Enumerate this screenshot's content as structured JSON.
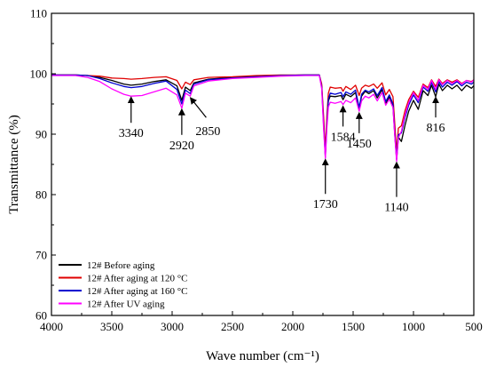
{
  "chart_data": {
    "type": "line",
    "xlabel": "Wave number (cm⁻¹)",
    "ylabel": "Transmittance (%)",
    "xlim": [
      4000,
      500
    ],
    "ylim": [
      60,
      110
    ],
    "x_ticks": [
      4000,
      3500,
      3000,
      2500,
      2000,
      1500,
      1000,
      500
    ],
    "y_ticks": [
      60,
      70,
      80,
      90,
      100,
      110
    ],
    "grid": false,
    "legend": "bottom-left",
    "series": [
      {
        "name": "12#  Before aging",
        "color": "#000000",
        "points": [
          [
            4000,
            99.8
          ],
          [
            3800,
            99.8
          ],
          [
            3700,
            99.7
          ],
          [
            3600,
            99.4
          ],
          [
            3500,
            98.9
          ],
          [
            3400,
            98.3
          ],
          [
            3340,
            98.1
          ],
          [
            3250,
            98.3
          ],
          [
            3150,
            98.7
          ],
          [
            3050,
            99.0
          ],
          [
            2960,
            98.0
          ],
          [
            2920,
            95.6
          ],
          [
            2890,
            97.8
          ],
          [
            2850,
            97.2
          ],
          [
            2820,
            98.5
          ],
          [
            2700,
            99.1
          ],
          [
            2500,
            99.4
          ],
          [
            2300,
            99.6
          ],
          [
            2100,
            99.7
          ],
          [
            1900,
            99.8
          ],
          [
            1780,
            99.8
          ],
          [
            1760,
            98.0
          ],
          [
            1745,
            92.0
          ],
          [
            1730,
            86.5
          ],
          [
            1718,
            92.0
          ],
          [
            1705,
            95.5
          ],
          [
            1690,
            96.3
          ],
          [
            1650,
            96.2
          ],
          [
            1600,
            96.4
          ],
          [
            1584,
            95.7
          ],
          [
            1560,
            96.6
          ],
          [
            1520,
            96.2
          ],
          [
            1480,
            96.9
          ],
          [
            1450,
            94.1
          ],
          [
            1430,
            96.3
          ],
          [
            1400,
            97.1
          ],
          [
            1370,
            96.7
          ],
          [
            1330,
            97.2
          ],
          [
            1300,
            96.0
          ],
          [
            1260,
            97.4
          ],
          [
            1230,
            95.0
          ],
          [
            1200,
            96.2
          ],
          [
            1170,
            94.6
          ],
          [
            1155,
            90.0
          ],
          [
            1140,
            85.8
          ],
          [
            1125,
            89.5
          ],
          [
            1100,
            88.8
          ],
          [
            1070,
            91.5
          ],
          [
            1040,
            93.8
          ],
          [
            1000,
            95.6
          ],
          [
            960,
            94.1
          ],
          [
            920,
            97.2
          ],
          [
            880,
            96.4
          ],
          [
            850,
            98.1
          ],
          [
            816,
            96.2
          ],
          [
            790,
            98.3
          ],
          [
            760,
            97.2
          ],
          [
            720,
            98.1
          ],
          [
            680,
            97.5
          ],
          [
            640,
            98.1
          ],
          [
            600,
            97.2
          ],
          [
            560,
            98.1
          ],
          [
            520,
            97.6
          ],
          [
            500,
            98.0
          ]
        ]
      },
      {
        "name": "12#  After aging at 120 °C",
        "color": "#e00000",
        "points": [
          [
            4000,
            99.8
          ],
          [
            3800,
            99.8
          ],
          [
            3700,
            99.7
          ],
          [
            3600,
            99.6
          ],
          [
            3500,
            99.3
          ],
          [
            3400,
            99.2
          ],
          [
            3340,
            99.1
          ],
          [
            3250,
            99.2
          ],
          [
            3150,
            99.4
          ],
          [
            3050,
            99.5
          ],
          [
            2960,
            98.9
          ],
          [
            2920,
            97.5
          ],
          [
            2890,
            98.6
          ],
          [
            2850,
            98.2
          ],
          [
            2820,
            99.0
          ],
          [
            2700,
            99.4
          ],
          [
            2500,
            99.5
          ],
          [
            2300,
            99.7
          ],
          [
            2100,
            99.8
          ],
          [
            1900,
            99.8
          ],
          [
            1780,
            99.8
          ],
          [
            1760,
            98.3
          ],
          [
            1745,
            93.0
          ],
          [
            1730,
            87.5
          ],
          [
            1718,
            93.0
          ],
          [
            1705,
            96.8
          ],
          [
            1690,
            97.8
          ],
          [
            1650,
            97.6
          ],
          [
            1600,
            97.7
          ],
          [
            1584,
            97.1
          ],
          [
            1560,
            97.9
          ],
          [
            1520,
            97.4
          ],
          [
            1480,
            98.1
          ],
          [
            1450,
            96.4
          ],
          [
            1430,
            97.6
          ],
          [
            1400,
            98.1
          ],
          [
            1370,
            97.9
          ],
          [
            1330,
            98.3
          ],
          [
            1300,
            97.6
          ],
          [
            1260,
            98.5
          ],
          [
            1230,
            96.5
          ],
          [
            1200,
            97.4
          ],
          [
            1170,
            96.2
          ],
          [
            1155,
            91.8
          ],
          [
            1140,
            87.0
          ],
          [
            1125,
            91.0
          ],
          [
            1100,
            91.4
          ],
          [
            1070,
            93.9
          ],
          [
            1040,
            95.7
          ],
          [
            1000,
            97.1
          ],
          [
            960,
            96.1
          ],
          [
            920,
            98.3
          ],
          [
            880,
            97.7
          ],
          [
            850,
            99.0
          ],
          [
            816,
            97.9
          ],
          [
            790,
            99.1
          ],
          [
            760,
            98.4
          ],
          [
            720,
            99.0
          ],
          [
            680,
            98.6
          ],
          [
            640,
            99.0
          ],
          [
            600,
            98.4
          ],
          [
            560,
            98.9
          ],
          [
            520,
            98.7
          ],
          [
            500,
            99.0
          ]
        ]
      },
      {
        "name": "12#  After aging at 160 °C",
        "color": "#0000d0",
        "points": [
          [
            4000,
            99.8
          ],
          [
            3800,
            99.8
          ],
          [
            3700,
            99.7
          ],
          [
            3600,
            99.2
          ],
          [
            3500,
            98.5
          ],
          [
            3400,
            97.9
          ],
          [
            3340,
            97.7
          ],
          [
            3250,
            97.9
          ],
          [
            3150,
            98.4
          ],
          [
            3050,
            98.8
          ],
          [
            2960,
            97.4
          ],
          [
            2920,
            95.0
          ],
          [
            2890,
            97.3
          ],
          [
            2850,
            96.7
          ],
          [
            2820,
            98.3
          ],
          [
            2700,
            99.0
          ],
          [
            2500,
            99.3
          ],
          [
            2300,
            99.5
          ],
          [
            2100,
            99.7
          ],
          [
            1900,
            99.8
          ],
          [
            1780,
            99.8
          ],
          [
            1760,
            97.8
          ],
          [
            1745,
            91.5
          ],
          [
            1730,
            86.2
          ],
          [
            1718,
            91.5
          ],
          [
            1705,
            95.8
          ],
          [
            1690,
            96.8
          ],
          [
            1650,
            96.6
          ],
          [
            1600,
            96.9
          ],
          [
            1584,
            96.2
          ],
          [
            1560,
            97.0
          ],
          [
            1520,
            96.6
          ],
          [
            1480,
            97.3
          ],
          [
            1450,
            94.4
          ],
          [
            1430,
            96.6
          ],
          [
            1400,
            97.3
          ],
          [
            1370,
            97.0
          ],
          [
            1330,
            97.5
          ],
          [
            1300,
            96.4
          ],
          [
            1260,
            97.7
          ],
          [
            1230,
            95.4
          ],
          [
            1200,
            96.5
          ],
          [
            1170,
            95.0
          ],
          [
            1155,
            90.2
          ],
          [
            1140,
            85.9
          ],
          [
            1125,
            89.9
          ],
          [
            1100,
            90.2
          ],
          [
            1070,
            92.8
          ],
          [
            1040,
            94.8
          ],
          [
            1000,
            96.5
          ],
          [
            960,
            95.2
          ],
          [
            920,
            97.8
          ],
          [
            880,
            97.1
          ],
          [
            850,
            98.6
          ],
          [
            816,
            97.0
          ],
          [
            790,
            98.7
          ],
          [
            760,
            97.8
          ],
          [
            720,
            98.6
          ],
          [
            680,
            98.1
          ],
          [
            640,
            98.7
          ],
          [
            600,
            98.0
          ],
          [
            560,
            98.6
          ],
          [
            520,
            98.3
          ],
          [
            500,
            98.6
          ]
        ]
      },
      {
        "name": "12#  After UV aging",
        "color": "#ff00ff",
        "points": [
          [
            4000,
            99.7
          ],
          [
            3800,
            99.7
          ],
          [
            3700,
            99.4
          ],
          [
            3600,
            98.7
          ],
          [
            3500,
            97.5
          ],
          [
            3400,
            96.6
          ],
          [
            3340,
            96.3
          ],
          [
            3250,
            96.4
          ],
          [
            3150,
            97.0
          ],
          [
            3050,
            97.6
          ],
          [
            2960,
            96.5
          ],
          [
            2920,
            94.3
          ],
          [
            2890,
            96.8
          ],
          [
            2850,
            96.3
          ],
          [
            2820,
            98.0
          ],
          [
            2700,
            98.8
          ],
          [
            2500,
            99.2
          ],
          [
            2300,
            99.4
          ],
          [
            2100,
            99.6
          ],
          [
            1900,
            99.7
          ],
          [
            1780,
            99.7
          ],
          [
            1760,
            97.5
          ],
          [
            1745,
            91.0
          ],
          [
            1730,
            86.0
          ],
          [
            1718,
            91.0
          ],
          [
            1705,
            94.5
          ],
          [
            1690,
            95.3
          ],
          [
            1650,
            95.1
          ],
          [
            1600,
            95.4
          ],
          [
            1584,
            94.9
          ],
          [
            1560,
            95.6
          ],
          [
            1520,
            95.2
          ],
          [
            1480,
            96.0
          ],
          [
            1450,
            93.8
          ],
          [
            1430,
            95.5
          ],
          [
            1400,
            96.3
          ],
          [
            1370,
            96.0
          ],
          [
            1330,
            96.6
          ],
          [
            1300,
            95.5
          ],
          [
            1260,
            96.9
          ],
          [
            1230,
            94.8
          ],
          [
            1200,
            95.8
          ],
          [
            1170,
            94.4
          ],
          [
            1155,
            89.8
          ],
          [
            1140,
            85.5
          ],
          [
            1125,
            89.4
          ],
          [
            1100,
            90.5
          ],
          [
            1070,
            93.2
          ],
          [
            1040,
            95.2
          ],
          [
            1000,
            96.9
          ],
          [
            960,
            95.6
          ],
          [
            920,
            98.1
          ],
          [
            880,
            97.4
          ],
          [
            850,
            98.9
          ],
          [
            816,
            97.4
          ],
          [
            790,
            99.0
          ],
          [
            760,
            98.2
          ],
          [
            720,
            98.9
          ],
          [
            680,
            98.4
          ],
          [
            640,
            98.9
          ],
          [
            600,
            98.3
          ],
          [
            560,
            98.9
          ],
          [
            520,
            98.6
          ],
          [
            500,
            99.0
          ]
        ]
      }
    ],
    "annotations": [
      {
        "label": "3340",
        "x": 3340,
        "y": 96.0,
        "dir": "up"
      },
      {
        "label": "2920",
        "x": 2920,
        "y": 94.0,
        "dir": "up"
      },
      {
        "label": "2850",
        "x": 2850,
        "y": 96.0,
        "dir": "diag"
      },
      {
        "label": "1730",
        "x": 1730,
        "y": 85.7,
        "dir": "up-long"
      },
      {
        "label": "1584",
        "x": 1584,
        "y": 94.5,
        "dir": "up-short"
      },
      {
        "label": "1450",
        "x": 1450,
        "y": 93.4,
        "dir": "up-short"
      },
      {
        "label": "1140",
        "x": 1140,
        "y": 85.2,
        "dir": "up-long"
      },
      {
        "label": "816",
        "x": 816,
        "y": 96.0,
        "dir": "up-short"
      }
    ]
  }
}
